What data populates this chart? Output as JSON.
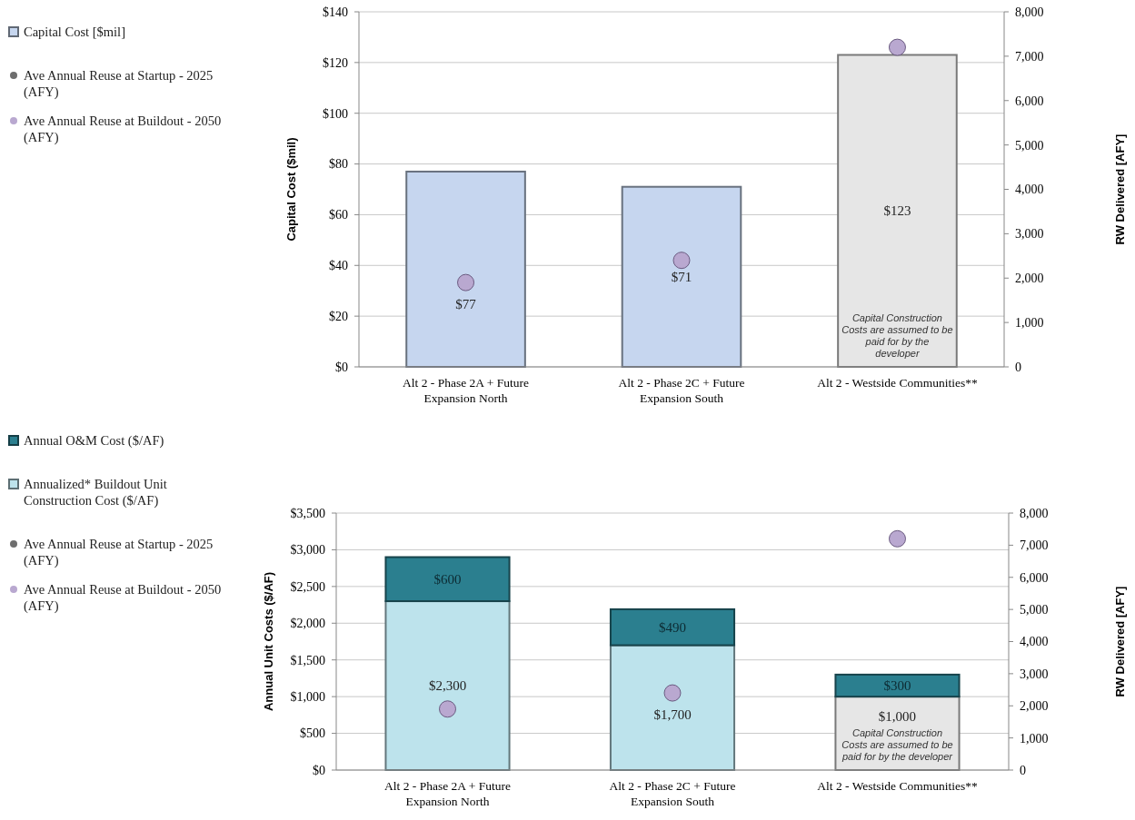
{
  "chart_data": [
    {
      "type": "bar",
      "categories": [
        "Alt 2 - Phase 2A + Future Expansion North",
        "Alt 2 - Phase 2C + Future Expansion South",
        "Alt 2 - Westside Communities**"
      ],
      "ylabel": "Capital Cost ($mil)",
      "y2label": "RW Delivered [AFY]",
      "series": [
        {
          "name": "Capital Cost [$mil]",
          "color": "#c6d6ef",
          "colors": [
            "#c6d6ef",
            "#c6d6ef",
            "#e6e6e6"
          ],
          "values": [
            77,
            71,
            123
          ],
          "value_labels": [
            "$77",
            "$71",
            "$123"
          ]
        },
        {
          "type": "scatter",
          "name": "Ave Annual Reuse at Startup - 2025 (AFY)",
          "color": "#6e6e6e",
          "axis": "y2",
          "values": [
            null,
            null,
            null
          ]
        },
        {
          "type": "scatter",
          "name": "Ave Annual Reuse at Buildout - 2050 (AFY)",
          "color": "#b9a8d0",
          "axis": "y2",
          "values": [
            1900,
            2400,
            7200
          ]
        }
      ],
      "ylim": [
        0,
        140
      ],
      "yticks": [
        {
          "value": 0,
          "label": "$0"
        },
        {
          "value": 20,
          "label": "$20"
        },
        {
          "value": 40,
          "label": "$40"
        },
        {
          "value": 60,
          "label": "$60"
        },
        {
          "value": 80,
          "label": "$80"
        },
        {
          "value": 100,
          "label": "$100"
        },
        {
          "value": 120,
          "label": "$120"
        },
        {
          "value": 140,
          "label": "$140"
        }
      ],
      "y2lim": [
        0,
        8000
      ],
      "y2ticks": [
        0,
        {
          "value": 1000,
          "label": "1,000"
        },
        {
          "value": 2000,
          "label": "2,000"
        },
        {
          "value": 3000,
          "label": "3,000"
        },
        {
          "value": 4000,
          "label": "4,000"
        },
        {
          "value": 5000,
          "label": "5,000"
        },
        {
          "value": 6000,
          "label": "6,000"
        },
        {
          "value": 7000,
          "label": "7,000"
        },
        {
          "value": 8000,
          "label": "8,000"
        }
      ],
      "annotations": [
        "Capital Construction Costs are assumed to be paid for by the developer"
      ],
      "grid": "y",
      "legend": "left",
      "marker": "circle"
    },
    {
      "type": "bar",
      "stacked": true,
      "categories": [
        "Alt 2 - Phase 2A + Future Expansion North",
        "Alt 2 - Phase 2C + Future Expansion South",
        "Alt 2 - Westside Communities**"
      ],
      "ylabel": "Annual Unit Costs ($/AF)",
      "y2label": "RW Delivered [AFY]",
      "series": [
        {
          "name": "Annualized* Buildout Unit Construction Cost ($/AF)",
          "color": "#bde3ec",
          "colors": [
            "#bde3ec",
            "#bde3ec",
            "#e6e6e6"
          ],
          "values": [
            2300,
            1700,
            1000
          ],
          "value_labels": [
            "$2,300",
            "$1,700",
            "$1,000"
          ]
        },
        {
          "name": "Annual O&M Cost ($/AF)",
          "color": "#2b7f8f",
          "values": [
            600,
            490,
            300
          ],
          "value_labels": [
            "$600",
            "$490",
            "$300"
          ]
        },
        {
          "type": "scatter",
          "name": "Ave Annual Reuse at Startup - 2025 (AFY)",
          "color": "#6e6e6e",
          "axis": "y2",
          "values": [
            null,
            null,
            null
          ]
        },
        {
          "type": "scatter",
          "name": "Ave Annual Reuse at Buildout - 2050 (AFY)",
          "color": "#b9a8d0",
          "axis": "y2",
          "values": [
            1900,
            2400,
            7200
          ]
        }
      ],
      "ylim": [
        0,
        3500
      ],
      "yticks": [
        {
          "value": 0,
          "label": "$0"
        },
        {
          "value": 500,
          "label": "$500"
        },
        {
          "value": 1000,
          "label": "$1,000"
        },
        {
          "value": 1500,
          "label": "$1,500"
        },
        {
          "value": 2000,
          "label": "$2,000"
        },
        {
          "value": 2500,
          "label": "$2,500"
        },
        {
          "value": 3000,
          "label": "$3,000"
        },
        {
          "value": 3500,
          "label": "$3,500"
        }
      ],
      "y2lim": [
        0,
        8000
      ],
      "y2ticks": [
        0,
        {
          "value": 1000,
          "label": "1,000"
        },
        {
          "value": 2000,
          "label": "2,000"
        },
        {
          "value": 3000,
          "label": "3,000"
        },
        {
          "value": 4000,
          "label": "4,000"
        },
        {
          "value": 5000,
          "label": "5,000"
        },
        {
          "value": 6000,
          "label": "6,000"
        },
        {
          "value": 7000,
          "label": "7,000"
        },
        {
          "value": 8000,
          "label": "8,000"
        }
      ],
      "annotations": [
        "Capital Construction Costs are assumed to be paid for by the developer"
      ],
      "grid": "y",
      "legend": "left",
      "marker": "circle"
    }
  ]
}
